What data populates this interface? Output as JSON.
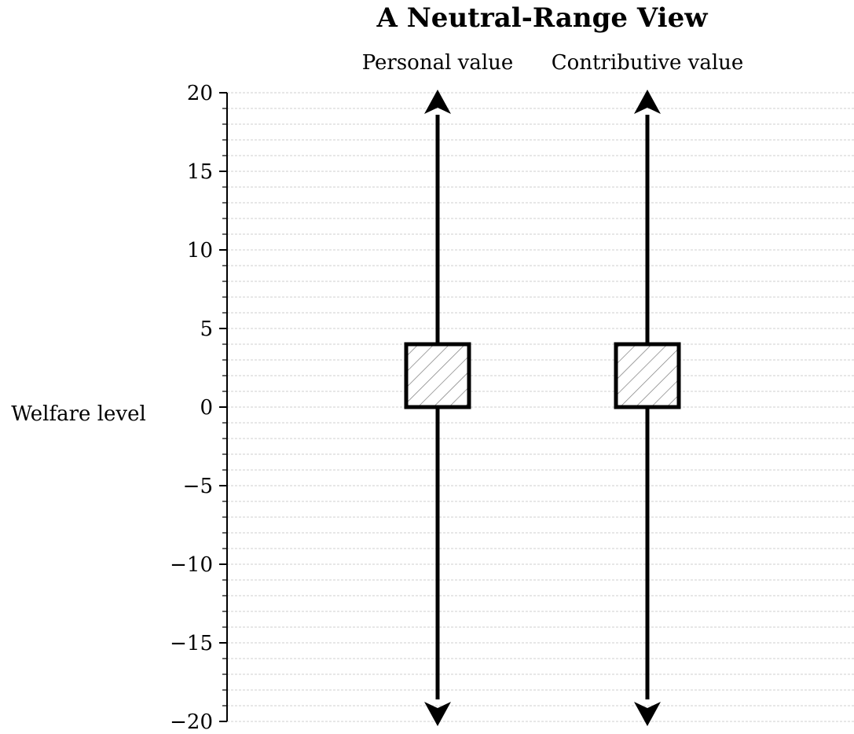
{
  "title": "A Neutral-Range View",
  "axis": {
    "ylabel": "Welfare level",
    "ylim": [
      -20,
      20
    ],
    "major_ticks": [
      20,
      15,
      10,
      5,
      0,
      -5,
      -10,
      -15,
      -20
    ],
    "tick_labels": [
      "20",
      "15",
      "10",
      "5",
      "0",
      "−5",
      "−10",
      "−15",
      "−20"
    ],
    "minor_step": 1,
    "grid": true
  },
  "columns": [
    {
      "label": "Personal value",
      "neutral_range": [
        0,
        4
      ],
      "extends": [
        "up",
        "down"
      ]
    },
    {
      "label": "Contributive value",
      "neutral_range": [
        0,
        4
      ],
      "extends": [
        "up",
        "down"
      ]
    }
  ],
  "colors": {
    "ink": "#000000",
    "grid": "#cfcfcf",
    "hatch": "#7a7a7a"
  }
}
